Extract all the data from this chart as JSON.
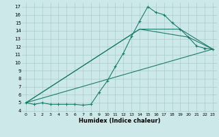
{
  "xlabel": "Humidex (Indice chaleur)",
  "background_color": "#cce8e8",
  "grid_color": "#aacccc",
  "line_color": "#1a7a6a",
  "xlim": [
    -0.5,
    23.5
  ],
  "ylim": [
    3.8,
    17.5
  ],
  "xticks": [
    0,
    1,
    2,
    3,
    4,
    5,
    6,
    7,
    8,
    9,
    10,
    11,
    12,
    13,
    14,
    15,
    16,
    17,
    18,
    19,
    20,
    21,
    22,
    23
  ],
  "yticks": [
    4,
    5,
    6,
    7,
    8,
    9,
    10,
    11,
    12,
    13,
    14,
    15,
    16,
    17
  ],
  "series": [
    {
      "x": [
        0,
        1,
        2,
        3,
        4,
        5,
        6,
        7,
        8,
        9,
        10,
        11,
        12,
        13,
        14,
        15,
        16,
        17,
        18,
        19,
        20,
        21,
        22,
        23
      ],
      "y": [
        5.0,
        4.8,
        5.0,
        4.8,
        4.8,
        4.8,
        4.8,
        4.7,
        4.8,
        6.3,
        7.7,
        9.5,
        11.2,
        13.3,
        15.2,
        17.0,
        16.3,
        16.0,
        15.0,
        14.2,
        13.2,
        12.1,
        11.8,
        11.7
      ],
      "has_marker": true
    },
    {
      "x": [
        0,
        14,
        19,
        23
      ],
      "y": [
        5.0,
        14.2,
        14.2,
        11.7
      ],
      "has_marker": false
    },
    {
      "x": [
        0,
        14,
        20,
        23
      ],
      "y": [
        5.0,
        14.2,
        13.2,
        11.7
      ],
      "has_marker": false
    },
    {
      "x": [
        0,
        23
      ],
      "y": [
        5.0,
        11.7
      ],
      "has_marker": false
    }
  ]
}
